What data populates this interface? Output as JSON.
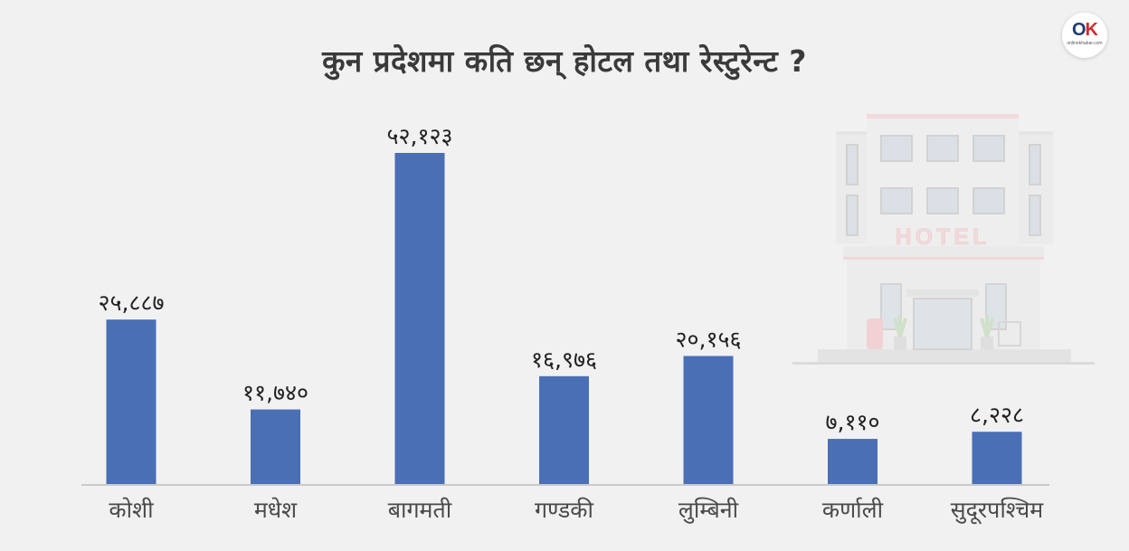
{
  "header": {
    "title": "कुन प्रदेशमा कति छन् होटल तथा रेस्टुरेन्ट ?"
  },
  "logo": {
    "mark_o": "O",
    "mark_k": "K",
    "sub": "onlinekhabar.com"
  },
  "illustration": {
    "sign": "HOTEL"
  },
  "chart_data": {
    "type": "bar",
    "categories": [
      "कोशी",
      "मधेश",
      "बागमती",
      "गण्डकी",
      "लुम्बिनी",
      "कर्णाली",
      "सुदूरपश्चिम"
    ],
    "values": [
      25887,
      11740,
      52123,
      16976,
      20156,
      7110,
      8228
    ],
    "value_labels": [
      "२५,८८७",
      "११,७४०",
      "५२,१२३",
      "१६,९७६",
      "२०,१५६",
      "७,११०",
      "८,२२८"
    ],
    "title": "कुन प्रदेशमा कति छन् होटल तथा रेस्टुरेन्ट ?",
    "ylim": [
      0,
      52123
    ],
    "grid": false,
    "legend": "none",
    "bar_color": "#4a6fb5",
    "axis_color": "#bdbdbd"
  }
}
